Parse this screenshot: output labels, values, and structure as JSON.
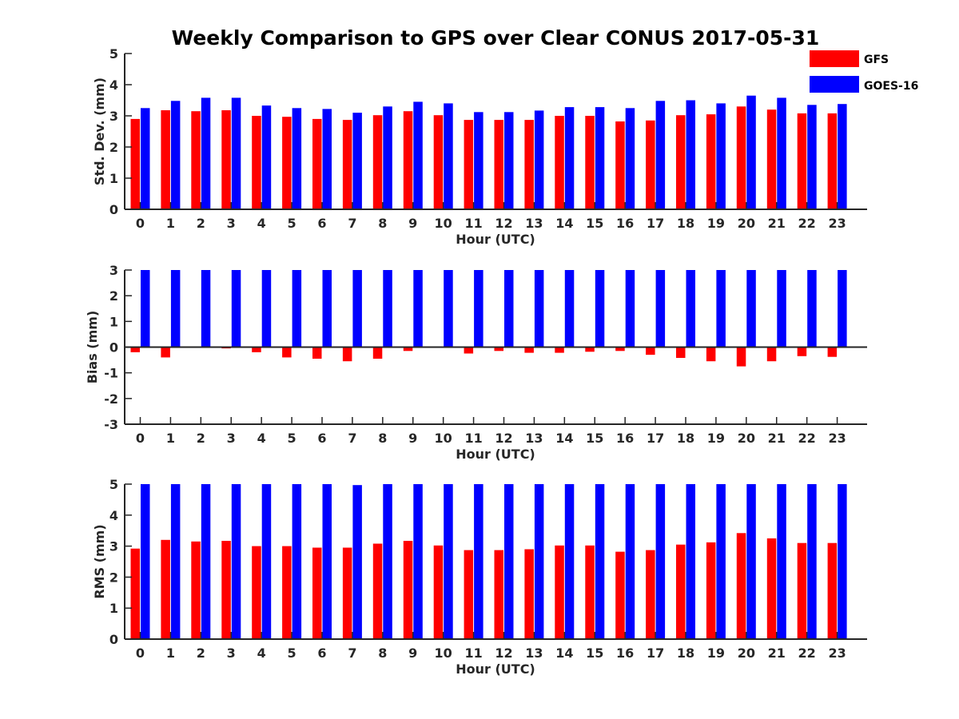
{
  "title": "Weekly Comparison to GPS over Clear CONUS 2017-05-31",
  "legend": [
    {
      "name": "GFS",
      "color": "#ff0000"
    },
    {
      "name": "GOES-16",
      "color": "#0000ff"
    }
  ],
  "chart_data": [
    {
      "type": "bar",
      "xlabel": "Hour (UTC)",
      "ylabel": "Std. Dev. (mm)",
      "ylim": [
        0,
        5
      ],
      "yticks": [
        0,
        1,
        2,
        3,
        4,
        5
      ],
      "categories": [
        0,
        1,
        2,
        3,
        4,
        5,
        6,
        7,
        8,
        9,
        10,
        11,
        12,
        13,
        14,
        15,
        16,
        17,
        18,
        19,
        20,
        21,
        22,
        23
      ],
      "legend_placement": "top-right",
      "series": [
        {
          "name": "GFS",
          "color": "#ff0000",
          "values": [
            2.9,
            3.18,
            3.15,
            3.18,
            3.0,
            2.97,
            2.9,
            2.87,
            3.02,
            3.15,
            3.02,
            2.87,
            2.87,
            2.87,
            3.0,
            3.0,
            2.82,
            2.85,
            3.02,
            3.05,
            3.3,
            3.2,
            3.08,
            3.08
          ]
        },
        {
          "name": "GOES-16",
          "color": "#0000ff",
          "values": [
            3.25,
            3.48,
            3.58,
            3.58,
            3.33,
            3.25,
            3.22,
            3.1,
            3.3,
            3.45,
            3.4,
            3.12,
            3.12,
            3.17,
            3.28,
            3.28,
            3.25,
            3.48,
            3.5,
            3.4,
            3.65,
            3.58,
            3.35,
            3.38
          ]
        }
      ]
    },
    {
      "type": "bar",
      "xlabel": "Hour (UTC)",
      "ylabel": "Bias (mm)",
      "ylim": [
        -3,
        3
      ],
      "yticks": [
        -3,
        -2,
        -1,
        0,
        1,
        2,
        3
      ],
      "categories": [
        0,
        1,
        2,
        3,
        4,
        5,
        6,
        7,
        8,
        9,
        10,
        11,
        12,
        13,
        14,
        15,
        16,
        17,
        18,
        19,
        20,
        21,
        22,
        23
      ],
      "series": [
        {
          "name": "GFS",
          "color": "#ff0000",
          "values": [
            -0.2,
            -0.4,
            0.0,
            -0.05,
            -0.2,
            -0.4,
            -0.45,
            -0.55,
            -0.45,
            -0.15,
            0.0,
            -0.25,
            -0.15,
            -0.22,
            -0.22,
            -0.18,
            -0.15,
            -0.3,
            -0.42,
            -0.55,
            -0.75,
            -0.55,
            -0.35,
            -0.38
          ]
        },
        {
          "name": "GOES-16",
          "color": "#0000ff",
          "values": [
            3,
            3,
            3,
            3,
            3,
            3,
            3,
            3,
            3,
            3,
            3,
            3,
            3,
            3,
            3,
            3,
            3,
            3,
            3,
            3,
            3,
            3,
            3,
            3
          ]
        }
      ]
    },
    {
      "type": "bar",
      "xlabel": "Hour (UTC)",
      "ylabel": "RMS (mm)",
      "ylim": [
        0,
        5
      ],
      "yticks": [
        0,
        1,
        2,
        3,
        4,
        5
      ],
      "categories": [
        0,
        1,
        2,
        3,
        4,
        5,
        6,
        7,
        8,
        9,
        10,
        11,
        12,
        13,
        14,
        15,
        16,
        17,
        18,
        19,
        20,
        21,
        22,
        23
      ],
      "series": [
        {
          "name": "GFS",
          "color": "#ff0000",
          "values": [
            2.92,
            3.2,
            3.15,
            3.17,
            3.0,
            3.0,
            2.95,
            2.95,
            3.08,
            3.17,
            3.02,
            2.87,
            2.87,
            2.9,
            3.02,
            3.02,
            2.82,
            2.87,
            3.05,
            3.12,
            3.42,
            3.25,
            3.1,
            3.1
          ]
        },
        {
          "name": "GOES-16",
          "color": "#0000ff",
          "values": [
            5,
            5,
            5,
            5,
            5,
            5,
            5,
            4.97,
            5,
            5,
            5,
            5,
            5,
            5,
            5,
            5,
            5,
            5,
            5,
            5,
            5,
            5,
            5,
            5
          ]
        }
      ]
    }
  ]
}
